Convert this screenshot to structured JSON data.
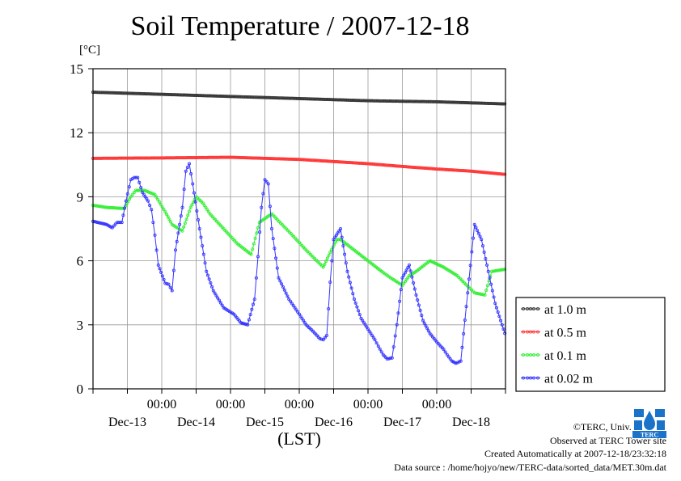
{
  "title": "Soil Temperature / 2007-12-18",
  "unit_label": "[°C]",
  "xlabel": "(LST)",
  "footer": {
    "copyright": "©TERC, Univ. Tsukuba",
    "site": "Observed at TERC Tower site",
    "created": "Created Automatically at 2007-12-18/23:32:18",
    "source": "Data source : /home/hojyo/new/TERC-data/sorted_data/MET.30m.dat"
  },
  "logo_text": "TERC",
  "colors": {
    "at_1_0m": "#333333",
    "at_0_5m": "#ff3333",
    "at_0_1m": "#33ee33",
    "at_0_02m": "#3333ff"
  },
  "chart_data": {
    "type": "line",
    "ylim": [
      0,
      15
    ],
    "yticks": [
      "0",
      "3",
      "6",
      "9",
      "12",
      "15"
    ],
    "xlim_days": [
      0,
      6
    ],
    "time_tick_labels": [
      "00:00",
      "00:00",
      "00:00",
      "00:00",
      "00:00"
    ],
    "date_labels": [
      "Dec-13",
      "Dec-14",
      "Dec-15",
      "Dec-16",
      "Dec-17",
      "Dec-18"
    ],
    "grid": true,
    "legend_position": "right",
    "series": [
      {
        "name": "at 1.0 m",
        "color": "#333333",
        "x": [
          0,
          1,
          2,
          3,
          4,
          5,
          5.99
        ],
        "y": [
          13.9,
          13.8,
          13.7,
          13.6,
          13.5,
          13.45,
          13.35
        ]
      },
      {
        "name": "at 0.5 m",
        "color": "#ff3333",
        "x": [
          0,
          1,
          2,
          2.5,
          3,
          3.5,
          4,
          4.5,
          5,
          5.5,
          5.99
        ],
        "y": [
          10.8,
          10.82,
          10.85,
          10.8,
          10.75,
          10.65,
          10.55,
          10.42,
          10.3,
          10.2,
          10.05
        ]
      },
      {
        "name": "at 0.1 m",
        "color": "#33ee33",
        "x": [
          0,
          0.2,
          0.45,
          0.55,
          0.62,
          0.75,
          0.9,
          1.05,
          1.15,
          1.3,
          1.42,
          1.5,
          1.6,
          1.7,
          1.9,
          2.1,
          2.3,
          2.42,
          2.6,
          2.9,
          3.1,
          3.35,
          3.45,
          3.55,
          3.6,
          3.8,
          4.0,
          4.2,
          4.33,
          4.5,
          4.6,
          4.7,
          4.9,
          5.1,
          5.3,
          5.42,
          5.55,
          5.7,
          5.8,
          5.99
        ],
        "y": [
          8.6,
          8.5,
          8.45,
          9.0,
          9.3,
          9.3,
          9.1,
          8.3,
          7.7,
          7.4,
          8.5,
          9.0,
          8.7,
          8.2,
          7.5,
          6.8,
          6.3,
          7.8,
          8.2,
          7.2,
          6.5,
          5.7,
          6.4,
          7.0,
          7.0,
          6.5,
          6.0,
          5.5,
          5.2,
          4.85,
          5.3,
          5.5,
          6.0,
          5.7,
          5.3,
          4.9,
          4.5,
          4.4,
          5.5,
          5.6
        ]
      },
      {
        "name": "at 0.02 m",
        "color": "#3333ff",
        "x": [
          0,
          0.2,
          0.28,
          0.35,
          0.42,
          0.48,
          0.55,
          0.6,
          0.65,
          0.72,
          0.8,
          0.85,
          0.9,
          0.95,
          1.05,
          1.1,
          1.15,
          1.2,
          1.3,
          1.35,
          1.4,
          1.45,
          1.55,
          1.65,
          1.75,
          1.9,
          2.05,
          2.15,
          2.25,
          2.35,
          2.4,
          2.45,
          2.5,
          2.55,
          2.6,
          2.7,
          2.85,
          3.0,
          3.1,
          3.2,
          3.3,
          3.35,
          3.4,
          3.45,
          3.5,
          3.6,
          3.7,
          3.8,
          3.9,
          4.0,
          4.1,
          4.15,
          4.22,
          4.28,
          4.35,
          4.42,
          4.5,
          4.6,
          4.7,
          4.8,
          4.9,
          5.0,
          5.1,
          5.15,
          5.22,
          5.28,
          5.35,
          5.45,
          5.55,
          5.65,
          5.75,
          5.85,
          5.95,
          5.99
        ],
        "y": [
          7.85,
          7.7,
          7.55,
          7.8,
          7.8,
          8.8,
          9.8,
          9.9,
          9.9,
          9.2,
          8.8,
          8.4,
          7.2,
          5.8,
          4.95,
          4.9,
          4.6,
          6.5,
          8.5,
          10.2,
          10.55,
          9.6,
          7.5,
          5.5,
          4.6,
          3.8,
          3.5,
          3.1,
          3.0,
          4.2,
          6.2,
          8.5,
          9.8,
          9.6,
          7.5,
          5.2,
          4.2,
          3.5,
          3.0,
          2.7,
          2.35,
          2.3,
          2.5,
          5.0,
          7.0,
          7.5,
          5.5,
          4.2,
          3.3,
          2.8,
          2.3,
          2.0,
          1.6,
          1.4,
          1.45,
          3.0,
          5.2,
          5.8,
          4.4,
          3.2,
          2.6,
          2.2,
          1.85,
          1.6,
          1.3,
          1.2,
          1.3,
          4.5,
          7.7,
          7.0,
          5.5,
          4.0,
          3.0,
          2.6
        ]
      }
    ]
  }
}
